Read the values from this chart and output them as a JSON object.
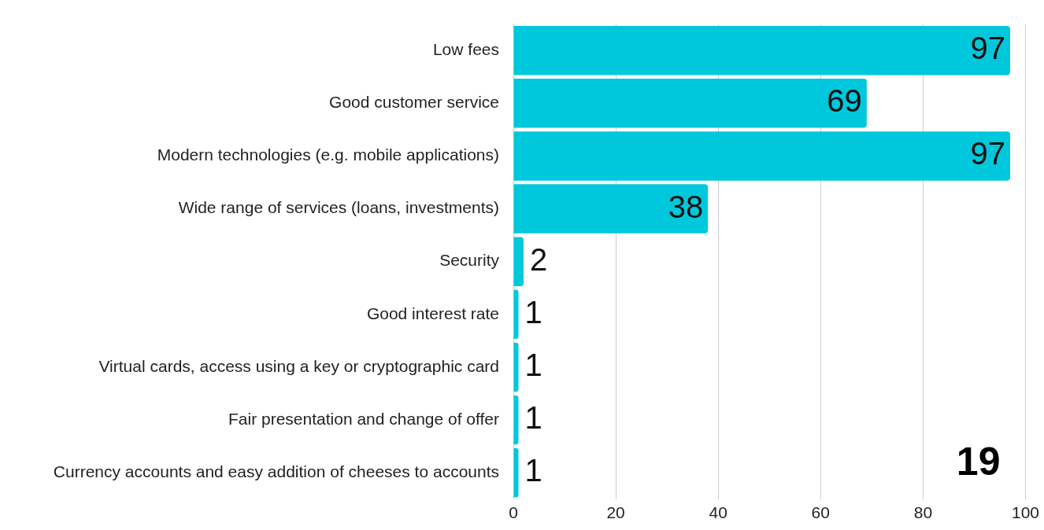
{
  "chart_data": {
    "type": "bar",
    "orientation": "horizontal",
    "categories": [
      "Low fees",
      "Good customer service",
      "Modern technologies (e.g. mobile applications)",
      "Wide range of services (loans, investments)",
      "Security",
      "Good interest rate",
      "Virtual cards, access using a key or cryptographic card",
      "Fair presentation and change of offer",
      "Currency accounts and easy addition of cheeses to accounts"
    ],
    "values": [
      97,
      69,
      97,
      38,
      2,
      1,
      1,
      1,
      1
    ],
    "color": "#00c8dc",
    "xlim": [
      0,
      100
    ],
    "xticks": [
      0,
      20,
      40,
      60,
      80,
      100
    ],
    "grid": "x",
    "data_labels": true,
    "annotations": [
      "19"
    ]
  }
}
